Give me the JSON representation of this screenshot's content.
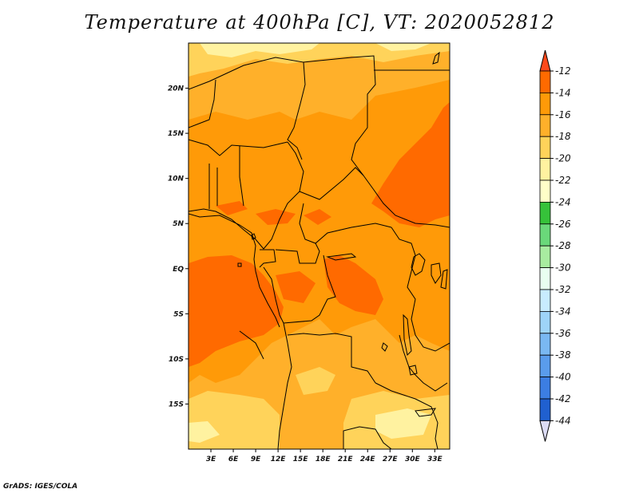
{
  "title": "Temperature at 400hPa [C], VT: 2020052812",
  "credit": "GrADS: IGES/COLA",
  "lat_labels": [
    {
      "lat": 20,
      "label": "20N"
    },
    {
      "lat": 15,
      "label": "15N"
    },
    {
      "lat": 10,
      "label": "10N"
    },
    {
      "lat": 5,
      "label": "5N"
    },
    {
      "lat": 0,
      "label": "EQ"
    },
    {
      "lat": -5,
      "label": "5S"
    },
    {
      "lat": -10,
      "label": "10S"
    },
    {
      "lat": -15,
      "label": "15S"
    }
  ],
  "lon_labels": [
    {
      "lon": 3,
      "label": "3E"
    },
    {
      "lon": 6,
      "label": "6E"
    },
    {
      "lon": 9,
      "label": "9E"
    },
    {
      "lon": 12,
      "label": "12E"
    },
    {
      "lon": 15,
      "label": "15E"
    },
    {
      "lon": 18,
      "label": "18E"
    },
    {
      "lon": 21,
      "label": "21E"
    },
    {
      "lon": 24,
      "label": "24E"
    },
    {
      "lon": 27,
      "label": "27E"
    },
    {
      "lon": 30,
      "label": "30E"
    },
    {
      "lon": 33,
      "label": "33E"
    }
  ],
  "map_extent": {
    "lon_min": 0,
    "lon_max": 35,
    "lat_min": -20,
    "lat_max": 25
  },
  "colorbar": {
    "labels": [
      "-12",
      "-14",
      "-16",
      "-18",
      "-20",
      "-22",
      "-24",
      "-26",
      "-28",
      "-30",
      "-32",
      "-34",
      "-36",
      "-38",
      "-40",
      "-42",
      "-44"
    ],
    "top_color": "#ff4a1c",
    "bottom_color": "#dcdcf5",
    "colors": [
      "#ff6a00",
      "#ff9a08",
      "#ffb02a",
      "#ffd35a",
      "#fff2a0",
      "#ffffc8",
      "#36c23a",
      "#6ad87a",
      "#a8eca0",
      "#e8fff0",
      "#c8ecff",
      "#9ed4f8",
      "#7ab8f2",
      "#5a9cec",
      "#3c7ee2",
      "#2060d0",
      "#0a2c98",
      "#050c70"
    ]
  },
  "legend": [
    {
      "value": "-14 to -12",
      "color": "#ff6a00"
    },
    {
      "value": "-16 to -14",
      "color": "#ff9a08"
    },
    {
      "value": "-18 to -16",
      "color": "#ffb02a"
    },
    {
      "value": "-20 to -18",
      "color": "#ffd35a"
    },
    {
      "value": "-22 to -20",
      "color": "#fff2a0"
    }
  ],
  "colors": {
    "land_base": "#ffb02a",
    "warm": "#ff9a08",
    "hot": "#ff6a00",
    "cool": "#ffd35a",
    "cooler": "#fff2a0",
    "border": "#000000"
  }
}
